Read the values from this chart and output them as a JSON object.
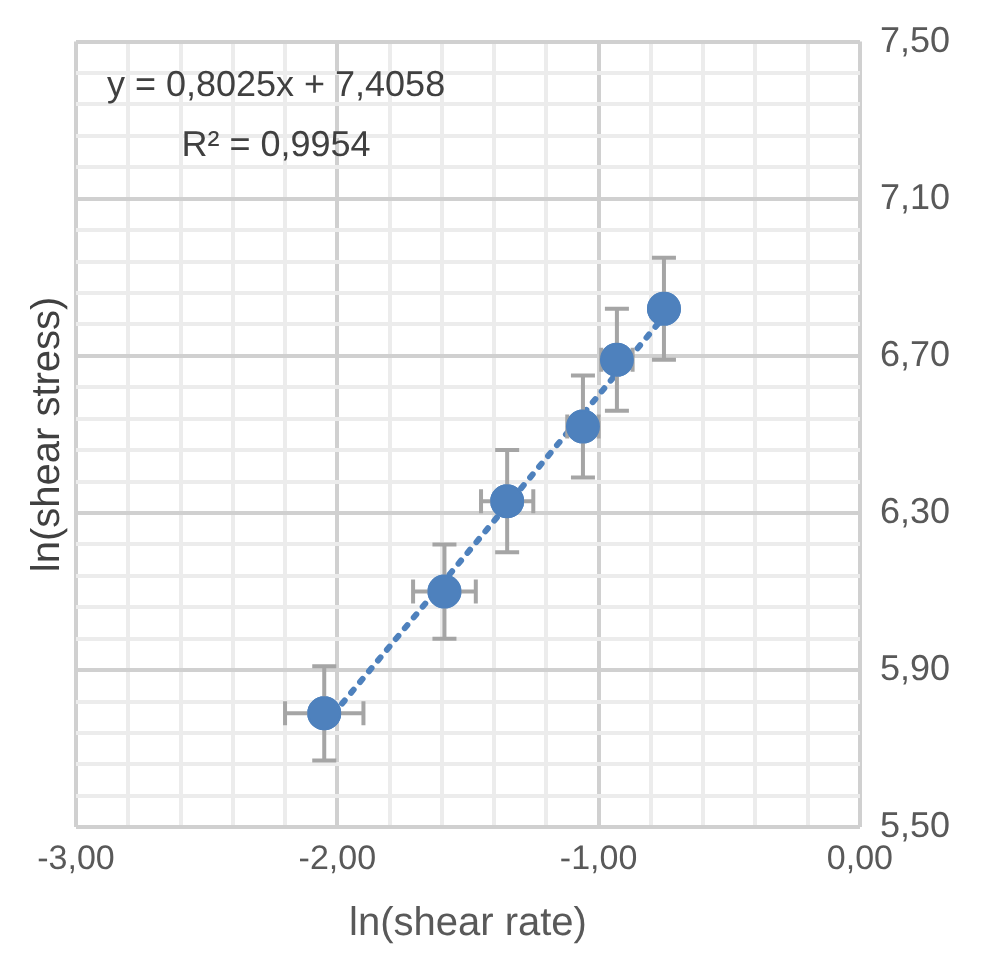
{
  "chart_data": {
    "type": "scatter",
    "xlabel": "ln(shear rate)",
    "ylabel": "ln(shear stress)",
    "annotations": [
      "y = 0,8025x + 7,4058",
      "R² = 0,9954"
    ],
    "series": [
      {
        "color": "#4e81bd",
        "x": [
          -2.05,
          -1.59,
          -1.35,
          -1.06,
          -0.93,
          -0.75
        ],
        "values": [
          5.79,
          6.1,
          6.33,
          6.52,
          6.69,
          6.82
        ],
        "errors": [
          0.12,
          0.12,
          0.13,
          0.13,
          0.13,
          0.13
        ],
        "xerrors": [
          0.15,
          0.12,
          0.1,
          0.06,
          0.06,
          null
        ]
      },
      {
        "type": "line",
        "color": "#4e81bd",
        "line_style": "dotted",
        "marker": "none",
        "x": [
          -2.05,
          -0.75
        ],
        "values": [
          5.76,
          6.8
        ]
      }
    ],
    "marker": "circle",
    "xlim": [
      -3,
      0
    ],
    "xticks": [
      {
        "value": -3,
        "label": "-3,00"
      },
      {
        "value": -2.8,
        "label": null
      },
      {
        "value": -2.6,
        "label": null
      },
      {
        "value": -2.4,
        "label": null
      },
      {
        "value": -2.2,
        "label": null
      },
      {
        "value": -2,
        "label": "-2,00"
      },
      {
        "value": -1.8,
        "label": null
      },
      {
        "value": -1.6,
        "label": null
      },
      {
        "value": -1.4,
        "label": null
      },
      {
        "value": -1.2,
        "label": null
      },
      {
        "value": -1,
        "label": "-1,00"
      },
      {
        "value": -0.8,
        "label": null
      },
      {
        "value": -0.6,
        "label": null
      },
      {
        "value": -0.4,
        "label": null
      },
      {
        "value": -0.2,
        "label": null
      },
      {
        "value": 0,
        "label": "0,00"
      }
    ],
    "ylim": [
      5.5,
      7.5
    ],
    "yticks": [
      {
        "value": 5.5,
        "label": "5,50"
      },
      {
        "value": 5.58,
        "label": null
      },
      {
        "value": 5.66,
        "label": null
      },
      {
        "value": 5.74,
        "label": null
      },
      {
        "value": 5.82,
        "label": null
      },
      {
        "value": 5.9,
        "label": "5,90"
      },
      {
        "value": 5.98,
        "label": null
      },
      {
        "value": 6.06,
        "label": null
      },
      {
        "value": 6.14,
        "label": null
      },
      {
        "value": 6.22,
        "label": null
      },
      {
        "value": 6.3,
        "label": "6,30"
      },
      {
        "value": 6.38,
        "label": null
      },
      {
        "value": 6.46,
        "label": null
      },
      {
        "value": 6.54,
        "label": null
      },
      {
        "value": 6.62,
        "label": null
      },
      {
        "value": 6.7,
        "label": "6,70"
      },
      {
        "value": 6.78,
        "label": null
      },
      {
        "value": 6.86,
        "label": null
      },
      {
        "value": 6.94,
        "label": null
      },
      {
        "value": 7.02,
        "label": null
      },
      {
        "value": 7.1,
        "label": "7,10"
      },
      {
        "value": 7.18,
        "label": null
      },
      {
        "value": 7.26,
        "label": null
      },
      {
        "value": 7.34,
        "label": null
      },
      {
        "value": 7.42,
        "label": null
      },
      {
        "value": 7.5,
        "label": "7,50"
      }
    ],
    "grid": true,
    "legend": false
  }
}
